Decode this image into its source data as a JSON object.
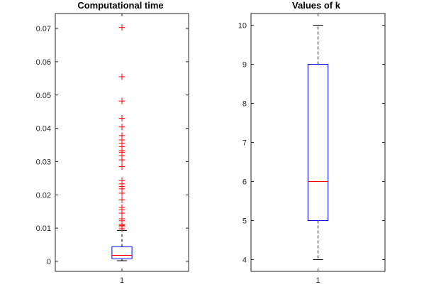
{
  "chart_data": [
    {
      "type": "boxplot",
      "title": "Computational time",
      "xlabel": "",
      "ylabel": "",
      "categories": [
        "1"
      ],
      "ylim": [
        -0.003,
        0.0745
      ],
      "yticks": [
        0,
        0.01,
        0.02,
        0.03,
        0.04,
        0.05,
        0.06,
        0.07
      ],
      "ytick_labels": [
        "0",
        "0.01",
        "0.02",
        "0.03",
        "0.04",
        "0.05",
        "0.06",
        "0.07"
      ],
      "box": {
        "whisker_low": 0.0002,
        "q1": 0.0008,
        "median": 0.0018,
        "q3": 0.0044,
        "whisker_high": 0.0093
      },
      "outliers": [
        0.0703,
        0.0555,
        0.0482,
        0.043,
        0.0404,
        0.0378,
        0.0365,
        0.0355,
        0.0345,
        0.0333,
        0.0328,
        0.0318,
        0.0305,
        0.0285,
        0.0243,
        0.0233,
        0.0225,
        0.0218,
        0.0205,
        0.0185,
        0.0162,
        0.0155,
        0.0145,
        0.0128,
        0.0122,
        0.0112,
        0.0108,
        0.0104,
        0.0098
      ],
      "colors": {
        "box": "#0000ff",
        "median": "#ff0000",
        "whisker": "#000000",
        "outlier": "#ff0000"
      },
      "grid": false
    },
    {
      "type": "boxplot",
      "title": "Values of k",
      "xlabel": "",
      "ylabel": "",
      "categories": [
        "1"
      ],
      "ylim": [
        3.7,
        10.3
      ],
      "yticks": [
        4,
        5,
        6,
        7,
        8,
        9,
        10
      ],
      "ytick_labels": [
        "4",
        "5",
        "6",
        "7",
        "8",
        "9",
        "10"
      ],
      "box": {
        "whisker_low": 4,
        "q1": 5,
        "median": 6,
        "q3": 9,
        "whisker_high": 10
      },
      "outliers": [],
      "colors": {
        "box": "#0000ff",
        "median": "#ff0000",
        "whisker": "#000000",
        "outlier": "#ff0000"
      },
      "grid": false
    }
  ]
}
